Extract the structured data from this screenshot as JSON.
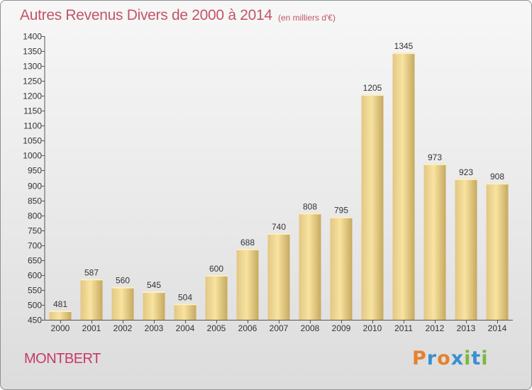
{
  "header": {
    "title": "Autres Revenus Divers de 2000 à 2014",
    "subtitle": "(en milliers d'€)"
  },
  "footer": {
    "commune": "MONTBERT",
    "brand": "Proxiti"
  },
  "colors": {
    "bar_light": "#f8e3a0",
    "bar_dark": "#c6a960",
    "title": "#c25566",
    "commune": "#c73a67",
    "brand_p": "#e3822f",
    "brand_r": "#3a8fd0",
    "brand_o": "#e3822f",
    "brand_x": "#3a8fd0",
    "brand_i": "#7ab83c",
    "brand_t": "#3a8fd0",
    "brand_i2": "#7ab83c"
  },
  "chart_data": {
    "type": "bar",
    "title": "Autres Revenus Divers de 2000 à 2014",
    "subtitle": "(en milliers d'€)",
    "xlabel": "",
    "ylabel": "",
    "categories": [
      "2000",
      "2001",
      "2002",
      "2003",
      "2004",
      "2005",
      "2006",
      "2007",
      "2008",
      "2009",
      "2010",
      "2011",
      "2012",
      "2013",
      "2014"
    ],
    "values": [
      481,
      587,
      560,
      545,
      504,
      600,
      688,
      740,
      808,
      795,
      1205,
      1345,
      973,
      923,
      908
    ],
    "ylim": [
      450,
      1400
    ],
    "yticks": [
      450,
      500,
      550,
      600,
      650,
      700,
      750,
      800,
      850,
      900,
      950,
      1000,
      1050,
      1100,
      1150,
      1200,
      1250,
      1300,
      1350,
      1400
    ],
    "grid": false,
    "legend": "none"
  }
}
